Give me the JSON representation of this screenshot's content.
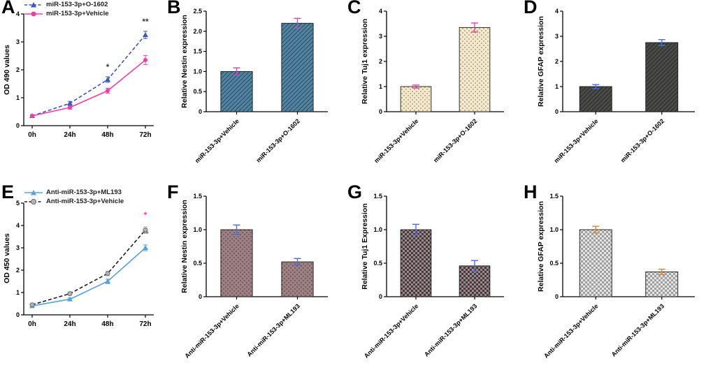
{
  "chart_data": [
    {
      "letter": "A",
      "type": "line",
      "ylabel": "OD 490 values",
      "ylim": [
        0,
        4
      ],
      "yticks": [
        "0",
        "1",
        "2",
        "3",
        "4"
      ],
      "categories": [
        "0h",
        "24h",
        "48h",
        "72h"
      ],
      "series": [
        {
          "name": "miR-153-3p+O-1602",
          "values": [
            0.35,
            0.8,
            1.65,
            3.25
          ],
          "errors": [
            0.04,
            0.07,
            0.1,
            0.13
          ],
          "lineColor": "#3d56c0",
          "markerColor": "#3d56c0",
          "marker": "triangle",
          "dashed": true
        },
        {
          "name": "miR-153-3p+Vehicle",
          "values": [
            0.35,
            0.65,
            1.25,
            2.35
          ],
          "errors": [
            0.04,
            0.06,
            0.09,
            0.16
          ],
          "lineColor": "#ef3fa5",
          "markerColor": "#ef3fa5",
          "marker": "circle",
          "dashed": false
        }
      ],
      "annotations": [
        {
          "x": 2,
          "yval": 2.0,
          "text": "*",
          "color": "#3d3d3d"
        },
        {
          "x": 3,
          "yval": 3.62,
          "text": "**",
          "color": "#3d3d3d"
        }
      ]
    },
    {
      "letter": "B",
      "type": "bar",
      "ylabel": "Relative Nestin expression",
      "ylim": [
        0,
        2.5
      ],
      "yticks": [
        "0",
        "0.5",
        "1.0",
        "1.5",
        "2.0",
        "2.5"
      ],
      "categories": [
        "miR-153-3p+Vehicle",
        "miR-153-3p+O-1602"
      ],
      "values": [
        1.0,
        2.2
      ],
      "errors": [
        0.09,
        0.12
      ],
      "barFill": "#54849f",
      "patternColor": "#23506a",
      "pattern": "diag",
      "errorColor": "#bb4cc0"
    },
    {
      "letter": "C",
      "type": "bar",
      "ylabel": "Relative Tuj1 expression",
      "ylim": [
        0,
        4
      ],
      "yticks": [
        "0",
        "1",
        "2",
        "3",
        "4"
      ],
      "categories": [
        "miR-153-3p+Vehicle",
        "miR-153-3p+O-1602"
      ],
      "values": [
        1.0,
        3.35
      ],
      "errors": [
        0.06,
        0.18
      ],
      "barFill": "#f3e9cf",
      "patternColor": "#a08c5c",
      "pattern": "dots",
      "errorColor": "#e843a4"
    },
    {
      "letter": "D",
      "type": "bar",
      "ylabel": "Relative GFAP expression",
      "ylim": [
        0,
        4
      ],
      "yticks": [
        "0",
        "1",
        "2",
        "3",
        "4"
      ],
      "categories": [
        "miR-153-3p+Vehicle",
        "miR-153-3p+O-1602"
      ],
      "values": [
        1.0,
        2.75
      ],
      "errors": [
        0.08,
        0.12
      ],
      "barFill": "#4a4a48",
      "patternColor": "#2b2b29",
      "pattern": "diag",
      "errorColor": "#4f6bd8"
    },
    {
      "letter": "E",
      "type": "line",
      "ylabel": "OD 450 values",
      "ylim": [
        0,
        5
      ],
      "yticks": [
        "0",
        "1",
        "2",
        "3",
        "4",
        "5"
      ],
      "categories": [
        "0h",
        "24h",
        "48h",
        "72h"
      ],
      "series": [
        {
          "name": "Anti-miR-153-3p+ML193",
          "values": [
            0.4,
            0.7,
            1.5,
            3.0
          ],
          "errors": [
            0.04,
            0.06,
            0.1,
            0.13
          ],
          "lineColor": "#58a0d8",
          "markerColor": "#58a0d8",
          "marker": "triangle",
          "dashed": false
        },
        {
          "name": "Anti-miR-153-3p+Vehicle",
          "values": [
            0.45,
            0.95,
            1.85,
            3.8
          ],
          "errors": [
            0.04,
            0.07,
            0.1,
            0.14
          ],
          "lineColor": "#1c1c1c",
          "markerColor": "#b3b3b3",
          "markerStroke": "#6e6e6e",
          "marker": "circle",
          "dashed": true
        }
      ],
      "annotations": [
        {
          "x": 3,
          "yval": 4.35,
          "text": "*",
          "color": "#e843a4"
        },
        {
          "x": 3,
          "yval": 3.5,
          "text": "**",
          "color": "#777777"
        }
      ]
    },
    {
      "letter": "F",
      "type": "bar",
      "ylabel": "Relative Nestin expression",
      "ylim": [
        0,
        1.5
      ],
      "yticks": [
        "0",
        "0.5",
        "1.0",
        "1.5"
      ],
      "categories": [
        "Anti-miR-153-3p+Vehicle",
        "Anti-miR-153-3p+ML193"
      ],
      "values": [
        1.0,
        0.52
      ],
      "errors": [
        0.07,
        0.05
      ],
      "barFill": "#9b8183",
      "patternColor": "#5c4345",
      "pattern": "dots",
      "errorColor": "#4f6bd8"
    },
    {
      "letter": "G",
      "type": "bar",
      "ylabel": "Relative Tuj1 Expression",
      "ylim": [
        0,
        1.5
      ],
      "yticks": [
        "0",
        "0.5",
        "1.0",
        "1.5"
      ],
      "categories": [
        "Anti-miR-153-3p+Vehicle",
        "Anti-miR-153-3p+ML193"
      ],
      "values": [
        1.0,
        0.46
      ],
      "errors": [
        0.08,
        0.08
      ],
      "barFill": "#473a3c",
      "patternColor": "#9a8a8d",
      "pattern": "checker",
      "errorColor": "#4f6bd8"
    },
    {
      "letter": "H",
      "type": "bar",
      "ylabel": "Relative GFAP expression",
      "ylim": [
        0,
        1.5
      ],
      "yticks": [
        "0",
        "0.5",
        "1.0",
        "1.5"
      ],
      "categories": [
        "Anti-miR-153-3p+Vehicle",
        "Anti-miR-153-3p+ML193"
      ],
      "values": [
        1.0,
        0.37
      ],
      "errors": [
        0.05,
        0.04
      ],
      "barFill": "#e4e4e4",
      "patternColor": "#9f9f9f",
      "pattern": "checker",
      "errorColor": "#d9873c"
    }
  ]
}
